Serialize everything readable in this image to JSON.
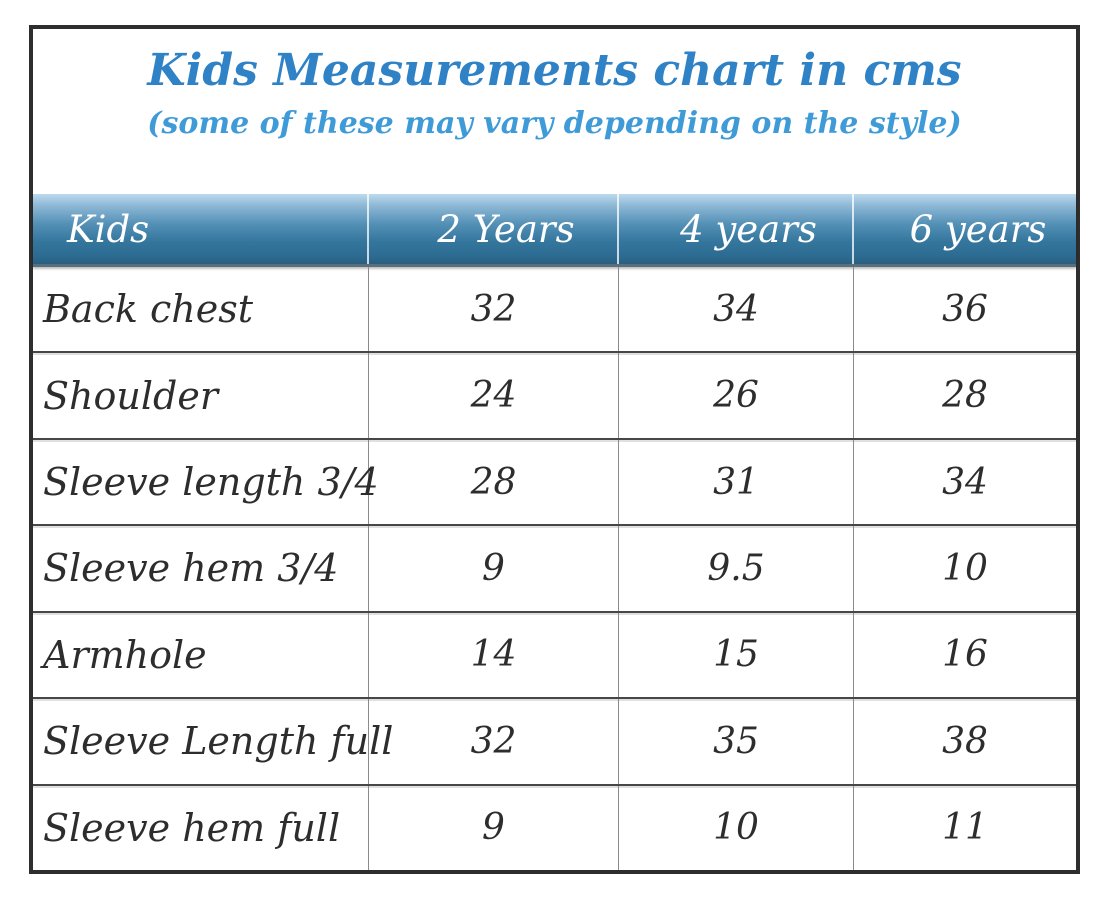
{
  "title": "Kids Measurements chart in cms",
  "subtitle": "(some of these may vary depending on the style)",
  "table": {
    "headers": [
      "Kids",
      "2 Years",
      "4 years",
      "6 years"
    ],
    "rows": [
      {
        "label": "Back chest",
        "values": [
          "32",
          "34",
          "36"
        ]
      },
      {
        "label": "Shoulder",
        "values": [
          "24",
          "26",
          "28"
        ]
      },
      {
        "label": "Sleeve length 3/4",
        "values": [
          "28",
          "31",
          "34"
        ]
      },
      {
        "label": "Sleeve hem 3/4",
        "values": [
          "9",
          "9.5",
          "10"
        ]
      },
      {
        "label": "Armhole",
        "values": [
          "14",
          "15",
          "16"
        ]
      },
      {
        "label": "Sleeve Length full",
        "values": [
          "32",
          "35",
          "38"
        ]
      },
      {
        "label": "Sleeve hem full",
        "values": [
          "9",
          "10",
          "11"
        ]
      }
    ]
  },
  "chart_data": {
    "type": "table",
    "title": "Kids Measurements chart in cms",
    "subtitle": "(some of these may vary depending on the style)",
    "units": "cms",
    "columns": [
      "Kids",
      "2 Years",
      "4 years",
      "6 years"
    ],
    "rows": [
      [
        "Back chest",
        32,
        34,
        36
      ],
      [
        "Shoulder",
        24,
        26,
        28
      ],
      [
        "Sleeve length 3/4",
        28,
        31,
        34
      ],
      [
        "Sleeve hem 3/4",
        9,
        9.5,
        10
      ],
      [
        "Armhole",
        14,
        15,
        16
      ],
      [
        "Sleeve Length full",
        32,
        35,
        38
      ],
      [
        "Sleeve hem full",
        9,
        10,
        11
      ]
    ]
  },
  "colors": {
    "title_blue": "#2e82c5",
    "subtitle_blue": "#3f9bd8",
    "header_gradient_top": "#bcdaee",
    "header_gradient_bottom": "#295f80",
    "header_text": "#ffffff",
    "body_text": "#2d2d2d",
    "outer_border": "#2e2e2e"
  }
}
